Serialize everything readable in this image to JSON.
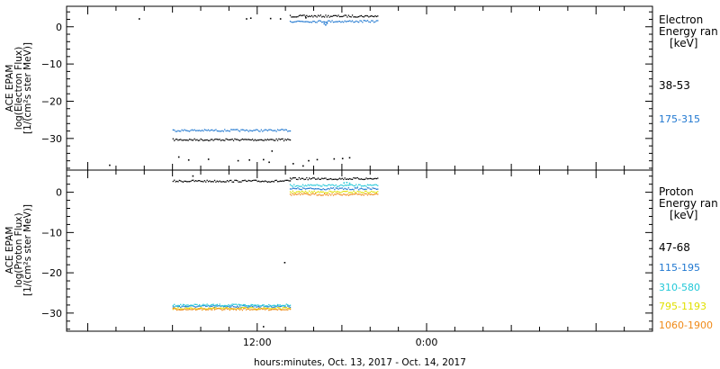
{
  "xlabel": "hours:minutes, Oct. 13, 2017 - Oct. 14, 2017",
  "x_ticks": [
    "12:00",
    "0:00"
  ],
  "colors": {
    "black": "#000000",
    "blue": "#1f77d0",
    "cyan": "#22c8d8",
    "yellow": "#e0e000",
    "orange": "#f08a18"
  },
  "electron_panel": {
    "ylabel": [
      "ACE EPAM",
      "log(Electron Flux)",
      "[1/(cm²s ster MeV)]"
    ],
    "legend_title": [
      "Electron",
      "Energy ran",
      "[keV]"
    ]
  },
  "proton_panel": {
    "ylabel": [
      "ACE EPAM",
      "log(Proton Flux)",
      "[1/(cm²s ster MeV)]"
    ],
    "legend_title": [
      "Proton",
      "Energy ran",
      "[keV]"
    ]
  },
  "chart_data": [
    {
      "type": "scatter",
      "x_unit": "hours since Oct. 13, 2017 00:00",
      "xlim": [
        -1.5,
        40
      ],
      "ylim": [
        -38.5,
        5.5
      ],
      "yticks": [
        0,
        -10,
        -20,
        -30
      ],
      "grid": false,
      "legend_placement": "right",
      "series": [
        {
          "name": "38-53",
          "color": "black",
          "segments": [
            {
              "x0": 6.0,
              "x1": 14.3,
              "y": -30.2
            },
            {
              "x0": 14.3,
              "x1": 20.5,
              "y": 3.0
            }
          ],
          "points": [
            [
              1.5,
              -37.0
            ],
            [
              3.6,
              2.3
            ],
            [
              11.2,
              2.3
            ],
            [
              11.5,
              2.5
            ],
            [
              12.9,
              2.4
            ],
            [
              13.6,
              2.3
            ],
            [
              15.4,
              2.6
            ],
            [
              13.0,
              -33.2
            ],
            [
              10.6,
              -35.8
            ],
            [
              11.4,
              -35.6
            ],
            [
              6.4,
              -34.8
            ],
            [
              7.1,
              -35.6
            ],
            [
              8.5,
              -35.4
            ],
            [
              12.4,
              -35.5
            ],
            [
              12.8,
              -36.2
            ],
            [
              15.6,
              -35.8
            ],
            [
              14.5,
              -36.6
            ],
            [
              15.2,
              -37.2
            ],
            [
              16.2,
              -35.5
            ],
            [
              17.4,
              -35.3
            ],
            [
              18.0,
              -35.2
            ],
            [
              18.5,
              -35.0
            ]
          ]
        },
        {
          "name": "175-315",
          "color": "blue",
          "segments": [
            {
              "x0": 6.0,
              "x1": 14.3,
              "y": -27.7
            },
            {
              "x0": 14.3,
              "x1": 20.5,
              "y": 1.6
            }
          ],
          "points": [
            [
              16.7,
              1.0
            ],
            [
              16.8,
              0.7
            ],
            [
              16.9,
              1.1
            ]
          ]
        }
      ]
    },
    {
      "type": "scatter",
      "x_unit": "hours since Oct. 13, 2017 00:00",
      "xlim": [
        -1.5,
        40
      ],
      "ylim": [
        -34.5,
        5.5
      ],
      "yticks": [
        0,
        -10,
        -20,
        -30
      ],
      "grid": false,
      "legend_placement": "right",
      "series": [
        {
          "name": "47-68",
          "color": "black",
          "segments": [
            {
              "x0": 6.0,
              "x1": 14.3,
              "y": 2.9
            },
            {
              "x0": 14.3,
              "x1": 20.5,
              "y": 3.5
            }
          ],
          "points": [
            [
              7.4,
              4.2
            ],
            [
              13.9,
              -17.3
            ],
            [
              12.4,
              -33.2
            ]
          ]
        },
        {
          "name": "115-195",
          "color": "blue",
          "segments": [
            {
              "x0": 6.0,
              "x1": 14.3,
              "y": -28.2
            },
            {
              "x0": 14.3,
              "x1": 20.5,
              "y": 1.0
            }
          ],
          "points": []
        },
        {
          "name": "310-580",
          "color": "cyan",
          "segments": [
            {
              "x0": 6.0,
              "x1": 14.3,
              "y": -27.9
            },
            {
              "x0": 14.3,
              "x1": 20.5,
              "y": 1.8
            }
          ],
          "points": [
            [
              18.1,
              2.5
            ],
            [
              18.3,
              2.6
            ],
            [
              18.5,
              2.4
            ]
          ]
        },
        {
          "name": "795-1193",
          "color": "yellow",
          "segments": [
            {
              "x0": 6.0,
              "x1": 14.3,
              "y": -28.7
            },
            {
              "x0": 14.3,
              "x1": 20.5,
              "y": 0.2
            }
          ],
          "points": []
        },
        {
          "name": "1060-1900",
          "color": "orange",
          "segments": [
            {
              "x0": 6.0,
              "x1": 14.3,
              "y": -28.9
            },
            {
              "x0": 14.3,
              "x1": 20.5,
              "y": -0.4
            }
          ],
          "points": []
        }
      ]
    }
  ]
}
